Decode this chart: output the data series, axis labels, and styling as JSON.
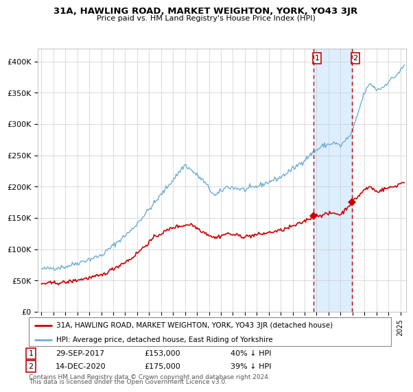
{
  "title": "31A, HAWLING ROAD, MARKET WEIGHTON, YORK, YO43 3JR",
  "subtitle": "Price paid vs. HM Land Registry's House Price Index (HPI)",
  "hpi_label": "HPI: Average price, detached house, East Riding of Yorkshire",
  "property_label": "31A, HAWLING ROAD, MARKET WEIGHTON, YORK, YO43 3JR (detached house)",
  "transactions": [
    {
      "date": 2017.75,
      "price": 153000,
      "label": "1",
      "date_str": "29-SEP-2017",
      "pct": "40% ↓ HPI"
    },
    {
      "date": 2020.95,
      "price": 175000,
      "label": "2",
      "date_str": "14-DEC-2020",
      "pct": "39% ↓ HPI"
    }
  ],
  "footnote1": "Contains HM Land Registry data © Crown copyright and database right 2024.",
  "footnote2": "This data is licensed under the Open Government Licence v3.0.",
  "hpi_color": "#6baed6",
  "property_color": "#cc0000",
  "highlight_color": "#ddeeff",
  "vline_color": "#cc0000",
  "grid_color": "#cccccc",
  "background_color": "#ffffff",
  "plot_bg_color": "#ffffff",
  "ylim": [
    0,
    420000
  ],
  "yticks": [
    0,
    50000,
    100000,
    150000,
    200000,
    250000,
    300000,
    350000,
    400000
  ],
  "xstart": 1994.7,
  "xend": 2025.5
}
